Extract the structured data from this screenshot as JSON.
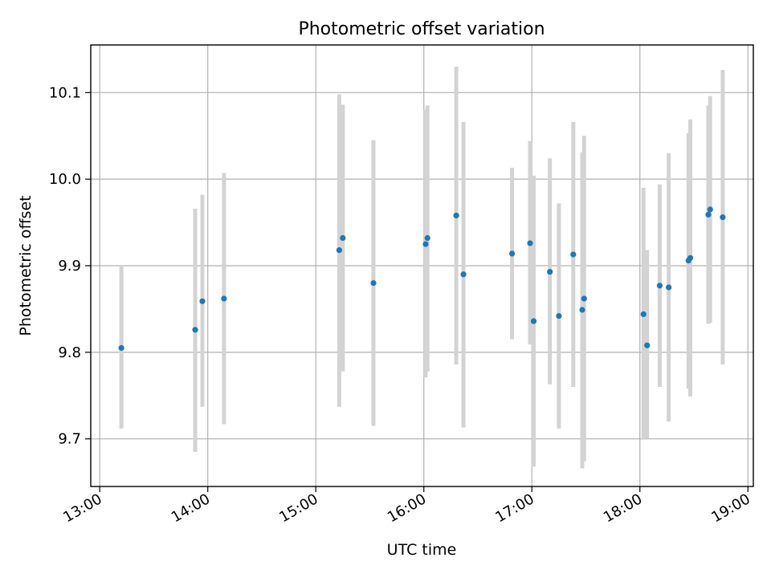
{
  "chart_data": {
    "type": "scatter",
    "title": "Photometric offset variation",
    "xlabel": "UTC time",
    "ylabel": "Photometric offset",
    "xlim": [
      "12:55",
      "19:03"
    ],
    "ylim": [
      9.645,
      10.155
    ],
    "x_ticks": [
      "13:00",
      "14:00",
      "15:00",
      "16:00",
      "17:00",
      "18:00",
      "19:00"
    ],
    "y_ticks": [
      9.7,
      9.8,
      9.9,
      10.0,
      10.1
    ],
    "y_tick_labels": [
      "9.7",
      "9.8",
      "9.9",
      "10.0",
      "10.1"
    ],
    "grid": true,
    "point_color": "#1f77b4",
    "errorbar_color": "#d3d3d3",
    "points": [
      {
        "t": "13:12",
        "y": 9.805,
        "lo": 9.712,
        "hi": 9.9
      },
      {
        "t": "13:53",
        "y": 9.826,
        "lo": 9.685,
        "hi": 9.966
      },
      {
        "t": "13:57",
        "y": 9.859,
        "lo": 9.737,
        "hi": 9.982
      },
      {
        "t": "14:09",
        "y": 9.862,
        "lo": 9.717,
        "hi": 10.007
      },
      {
        "t": "15:13",
        "y": 9.918,
        "lo": 9.737,
        "hi": 10.098
      },
      {
        "t": "15:15",
        "y": 9.932,
        "lo": 9.778,
        "hi": 10.086
      },
      {
        "t": "15:32",
        "y": 9.88,
        "lo": 9.715,
        "hi": 10.045
      },
      {
        "t": "16:01",
        "y": 9.925,
        "lo": 9.771,
        "hi": 10.08
      },
      {
        "t": "16:02",
        "y": 9.932,
        "lo": 9.778,
        "hi": 10.085
      },
      {
        "t": "16:18",
        "y": 9.958,
        "lo": 9.786,
        "hi": 10.13
      },
      {
        "t": "16:22",
        "y": 9.89,
        "lo": 9.713,
        "hi": 10.066
      },
      {
        "t": "16:49",
        "y": 9.914,
        "lo": 9.815,
        "hi": 10.013
      },
      {
        "t": "16:59",
        "y": 9.926,
        "lo": 9.809,
        "hi": 10.044
      },
      {
        "t": "17:01",
        "y": 9.836,
        "lo": 9.668,
        "hi": 10.004
      },
      {
        "t": "17:10",
        "y": 9.893,
        "lo": 9.763,
        "hi": 10.024
      },
      {
        "t": "17:15",
        "y": 9.842,
        "lo": 9.712,
        "hi": 9.972
      },
      {
        "t": "17:23",
        "y": 9.913,
        "lo": 9.76,
        "hi": 10.066
      },
      {
        "t": "17:28",
        "y": 9.849,
        "lo": 9.666,
        "hi": 10.031
      },
      {
        "t": "17:29",
        "y": 9.862,
        "lo": 9.674,
        "hi": 10.05
      },
      {
        "t": "18:02",
        "y": 9.844,
        "lo": 9.699,
        "hi": 9.99
      },
      {
        "t": "18:04",
        "y": 9.808,
        "lo": 9.7,
        "hi": 9.918
      },
      {
        "t": "18:11",
        "y": 9.877,
        "lo": 9.76,
        "hi": 9.994
      },
      {
        "t": "18:16",
        "y": 9.875,
        "lo": 9.72,
        "hi": 10.03
      },
      {
        "t": "18:27",
        "y": 9.906,
        "lo": 9.758,
        "hi": 10.053
      },
      {
        "t": "18:28",
        "y": 9.909,
        "lo": 9.749,
        "hi": 10.069
      },
      {
        "t": "18:38",
        "y": 9.959,
        "lo": 9.833,
        "hi": 10.085
      },
      {
        "t": "18:39",
        "y": 9.965,
        "lo": 9.834,
        "hi": 10.096
      },
      {
        "t": "18:46",
        "y": 9.956,
        "lo": 9.786,
        "hi": 10.126
      }
    ]
  }
}
